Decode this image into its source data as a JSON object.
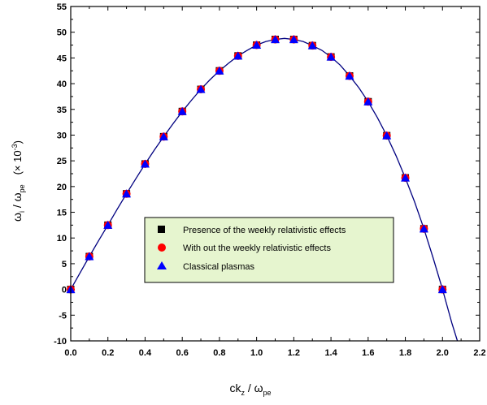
{
  "chart_data": {
    "type": "line",
    "xlabel": {
      "main": "ck",
      "sub": "z",
      "sep": " / ",
      "omega": "ω",
      "omega_sub": "pe"
    },
    "ylabel": {
      "omega": "ω",
      "sub_i": "i",
      "sep": " / ",
      "omega2": "ω",
      "sub_pe": "pe",
      "scale": "(× 10",
      "exp": "-3",
      "close": ")"
    },
    "xlim": [
      0.0,
      2.2
    ],
    "ylim": [
      -10,
      55
    ],
    "xticks": [
      0.0,
      0.2,
      0.4,
      0.6,
      0.8,
      1.0,
      1.2,
      1.4,
      1.6,
      1.8,
      2.0,
      2.2
    ],
    "xtick_labels": [
      "0.0",
      "0.2",
      "0.4",
      "0.6",
      "0.8",
      "1.0",
      "1.2",
      "1.4",
      "1.6",
      "1.8",
      "2.0",
      "2.2"
    ],
    "yticks": [
      -10,
      -5,
      0,
      5,
      10,
      15,
      20,
      25,
      30,
      35,
      40,
      45,
      50,
      55
    ],
    "ytick_labels": [
      "-10",
      "-5",
      "0",
      "5",
      "10",
      "15",
      "20",
      "25",
      "30",
      "35",
      "40",
      "45",
      "50",
      "55"
    ],
    "grid": false,
    "legend_position": "center",
    "curve": {
      "x": [
        0.0,
        0.05,
        0.1,
        0.15,
        0.2,
        0.25,
        0.3,
        0.35,
        0.4,
        0.45,
        0.5,
        0.55,
        0.6,
        0.65,
        0.7,
        0.75,
        0.8,
        0.85,
        0.9,
        0.95,
        1.0,
        1.05,
        1.1,
        1.15,
        1.2,
        1.25,
        1.3,
        1.35,
        1.4,
        1.45,
        1.5,
        1.55,
        1.6,
        1.65,
        1.7,
        1.75,
        1.8,
        1.85,
        1.9,
        1.95,
        2.0,
        2.05,
        2.08
      ],
      "y": [
        0,
        3.2,
        6.4,
        9.5,
        12.5,
        15.6,
        18.6,
        21.5,
        24.4,
        27.1,
        29.7,
        32.2,
        34.6,
        36.8,
        38.9,
        40.8,
        42.5,
        44.0,
        45.4,
        46.5,
        47.5,
        48.2,
        48.6,
        48.8,
        48.6,
        48.2,
        47.4,
        46.5,
        45.2,
        43.6,
        41.5,
        39.2,
        36.5,
        33.4,
        29.9,
        26.0,
        21.7,
        17.0,
        11.8,
        6.1,
        0,
        -6.5,
        -10
      ]
    },
    "series": [
      {
        "name": "Presence of the weekly relativistic effects",
        "marker": "square",
        "color": "#000000",
        "x": [
          0.0,
          0.1,
          0.2,
          0.3,
          0.4,
          0.5,
          0.6,
          0.7,
          0.8,
          0.9,
          1.0,
          1.1,
          1.2,
          1.3,
          1.4,
          1.5,
          1.6,
          1.7,
          1.8,
          1.9,
          2.0
        ],
        "y": [
          0,
          6.4,
          12.5,
          18.6,
          24.4,
          29.7,
          34.6,
          38.9,
          42.5,
          45.4,
          47.5,
          48.6,
          48.6,
          47.4,
          45.2,
          41.5,
          36.5,
          29.9,
          21.7,
          11.8,
          0
        ]
      },
      {
        "name": "With out the weekly relativistic effects",
        "marker": "circle",
        "color": "#ff0000",
        "x": [
          0.0,
          0.1,
          0.2,
          0.3,
          0.4,
          0.5,
          0.6,
          0.7,
          0.8,
          0.9,
          1.0,
          1.1,
          1.2,
          1.3,
          1.4,
          1.5,
          1.6,
          1.7,
          1.8,
          1.9,
          2.0
        ],
        "y": [
          0,
          6.4,
          12.5,
          18.6,
          24.4,
          29.7,
          34.6,
          38.9,
          42.5,
          45.4,
          47.5,
          48.6,
          48.6,
          47.4,
          45.2,
          41.5,
          36.5,
          29.9,
          21.7,
          11.8,
          0
        ]
      },
      {
        "name": "Classical plasmas",
        "marker": "triangle",
        "color": "#0000ff",
        "x": [
          0.0,
          0.1,
          0.2,
          0.3,
          0.4,
          0.5,
          0.6,
          0.7,
          0.8,
          0.9,
          1.0,
          1.1,
          1.2,
          1.3,
          1.4,
          1.5,
          1.6,
          1.7,
          1.8,
          1.9,
          2.0
        ],
        "y": [
          0,
          6.4,
          12.5,
          18.6,
          24.4,
          29.7,
          34.6,
          38.9,
          42.5,
          45.4,
          47.5,
          48.6,
          48.6,
          47.4,
          45.2,
          41.5,
          36.5,
          29.9,
          21.7,
          11.8,
          0
        ]
      }
    ],
    "colors": {
      "curve_line": "#000080",
      "legend_bg": "#e6f5cf",
      "axis": "#000000"
    }
  }
}
